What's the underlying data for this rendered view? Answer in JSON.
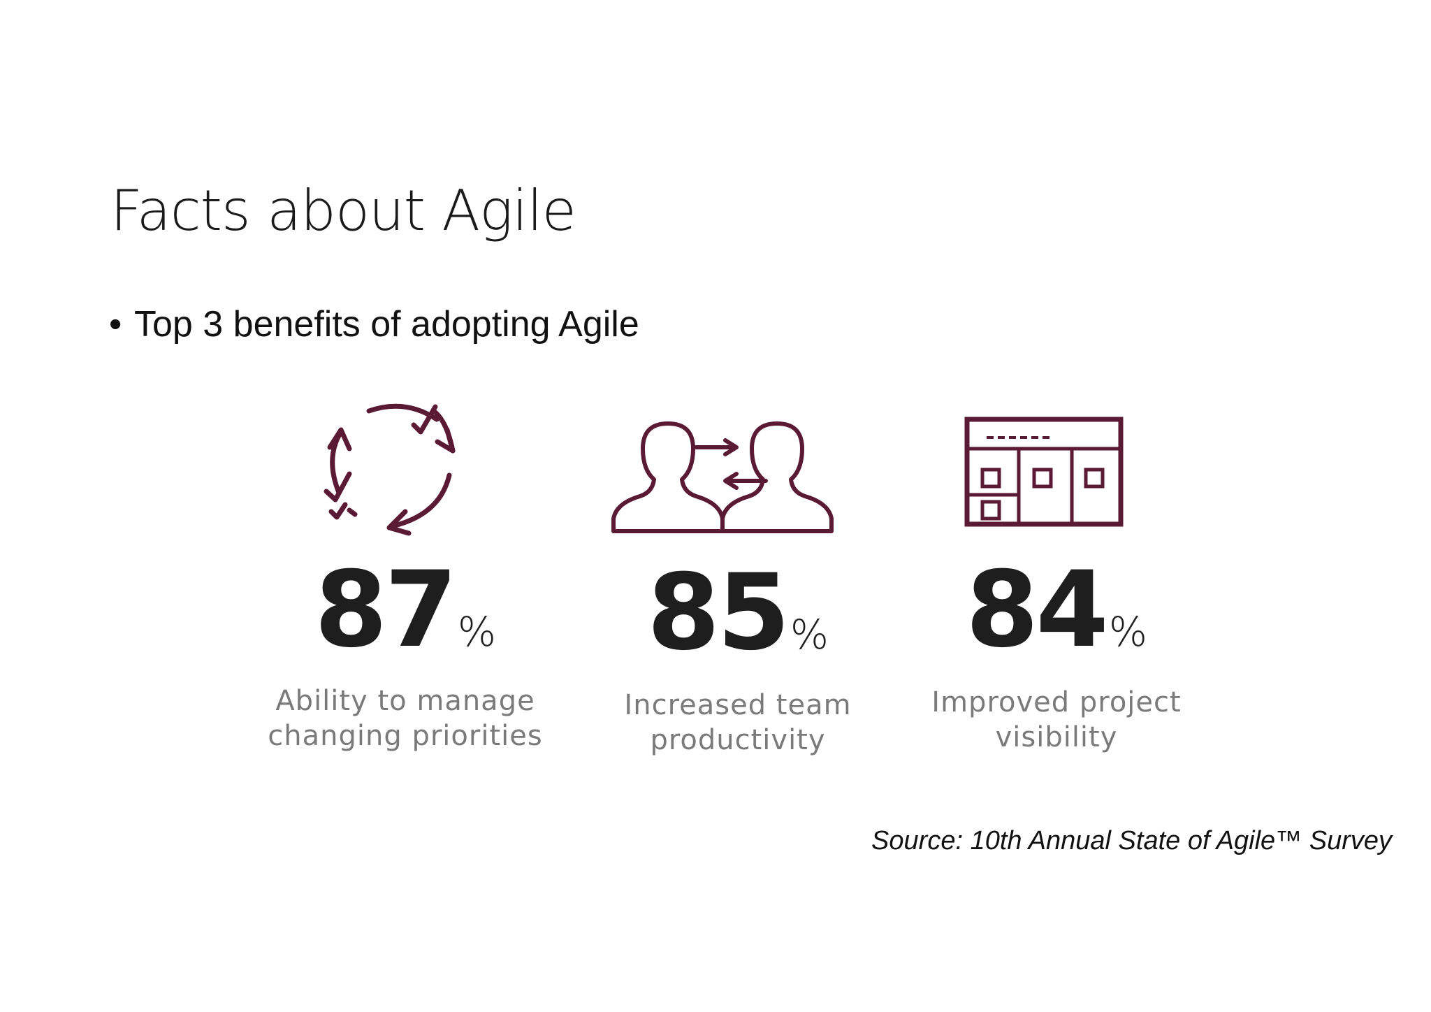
{
  "slide": {
    "title": "Facts about Agile",
    "bullet": {
      "symbol": "•",
      "text": "Top 3 benefits of adopting Agile"
    },
    "stats": [
      {
        "value": "87",
        "unit": "%",
        "label_line1": "Ability to manage",
        "label_line2": "changing priorities",
        "icon": "cycle-checkmarks-icon"
      },
      {
        "value": "85",
        "unit": "%",
        "label_line1": "Increased team",
        "label_line2": "productivity",
        "icon": "two-people-exchange-icon"
      },
      {
        "value": "84",
        "unit": "%",
        "label_line1": "Improved project",
        "label_line2": "visibility",
        "icon": "project-board-icon"
      }
    ],
    "source": "Source: 10th Annual State of Agile™ Survey"
  },
  "colors": {
    "icon": "#5b1a33",
    "number": "#1e1e1e",
    "caption": "#7a7a7a",
    "text": "#111111"
  }
}
